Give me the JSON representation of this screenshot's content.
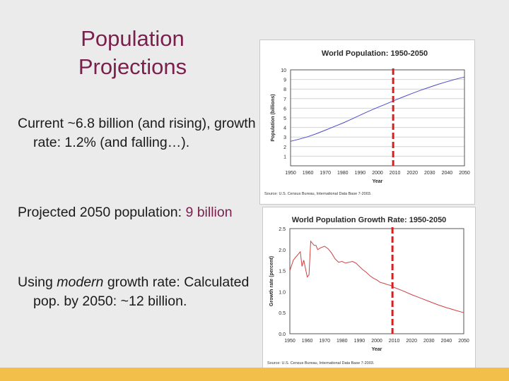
{
  "slide": {
    "title_line1": "Population",
    "title_line2": "Projections",
    "bullet1": "Current ~6.8 billion (and rising), growth rate: 1.2% (and falling…).",
    "bullet2_prefix": "Projected 2050 population: ",
    "bullet2_value": "9 billion",
    "bullet3_prefix": "Using ",
    "bullet3_em": "modern",
    "bullet3_suffix": " growth rate: Calculated pop. by 2050: ~12 billion."
  },
  "colors": {
    "accent": "#7a1f4e",
    "bar": "#f2c04a",
    "series1": "#4a4ad0",
    "series2": "#d04040",
    "marker": "#d42020"
  },
  "chart_data": [
    {
      "type": "line",
      "title": "World Population: 1950-2050",
      "xlabel": "Year",
      "ylabel": "Population (billions)",
      "xlim": [
        1950,
        2050
      ],
      "ylim": [
        0,
        10
      ],
      "xticks": [
        "1950",
        "1960",
        "1970",
        "1980",
        "1990",
        "2000",
        "2010",
        "2020",
        "2030",
        "2040",
        "2050"
      ],
      "yticks": [
        "1",
        "2",
        "3",
        "4",
        "5",
        "6",
        "7",
        "8",
        "9",
        "10"
      ],
      "grid": true,
      "source": "Source: U.S. Census Bureau, International Data Base 7-2003.",
      "marker_year": 2009,
      "series": [
        {
          "name": "Population",
          "x": [
            1950,
            1955,
            1960,
            1965,
            1970,
            1975,
            1980,
            1985,
            1990,
            1995,
            2000,
            2005,
            2010,
            2015,
            2020,
            2025,
            2030,
            2035,
            2040,
            2045,
            2050
          ],
          "values": [
            2.55,
            2.78,
            3.04,
            3.35,
            3.71,
            4.09,
            4.45,
            4.86,
            5.28,
            5.69,
            6.08,
            6.45,
            6.83,
            7.2,
            7.55,
            7.89,
            8.2,
            8.5,
            8.77,
            9.03,
            9.25
          ]
        }
      ]
    },
    {
      "type": "line",
      "title": "World Population Growth Rate: 1950-2050",
      "xlabel": "Year",
      "ylabel": "Growth rate (percent)",
      "xlim": [
        1950,
        2050
      ],
      "ylim": [
        0,
        2.5
      ],
      "xticks": [
        "1950",
        "1960",
        "1970",
        "1980",
        "1990",
        "2000",
        "2010",
        "2020",
        "2030",
        "2040",
        "2050"
      ],
      "yticks": [
        "0.0",
        "0.5",
        "1.0",
        "1.5",
        "2.0",
        "2.5"
      ],
      "grid": false,
      "source": "Source: U.S. Census Bureau, International Data Base 7-2003.",
      "marker_year": 2009,
      "series": [
        {
          "name": "Growth rate",
          "x": [
            1950,
            1952,
            1954,
            1956,
            1957,
            1958,
            1959,
            1960,
            1961,
            1962,
            1963,
            1964,
            1965,
            1966,
            1968,
            1970,
            1972,
            1974,
            1976,
            1978,
            1980,
            1982,
            1984,
            1986,
            1988,
            1990,
            1992,
            1994,
            1996,
            1998,
            2000,
            2002,
            2004,
            2006,
            2008,
            2010,
            2015,
            2020,
            2025,
            2030,
            2035,
            2040,
            2045,
            2050
          ],
          "values": [
            1.5,
            1.75,
            1.85,
            1.95,
            1.6,
            1.75,
            1.55,
            1.35,
            1.4,
            2.2,
            2.15,
            2.1,
            2.1,
            2.0,
            2.05,
            2.08,
            2.02,
            1.92,
            1.78,
            1.7,
            1.72,
            1.68,
            1.7,
            1.72,
            1.68,
            1.6,
            1.52,
            1.46,
            1.38,
            1.32,
            1.28,
            1.22,
            1.2,
            1.17,
            1.15,
            1.1,
            1.02,
            0.93,
            0.85,
            0.77,
            0.69,
            0.62,
            0.56,
            0.5
          ]
        }
      ]
    }
  ]
}
